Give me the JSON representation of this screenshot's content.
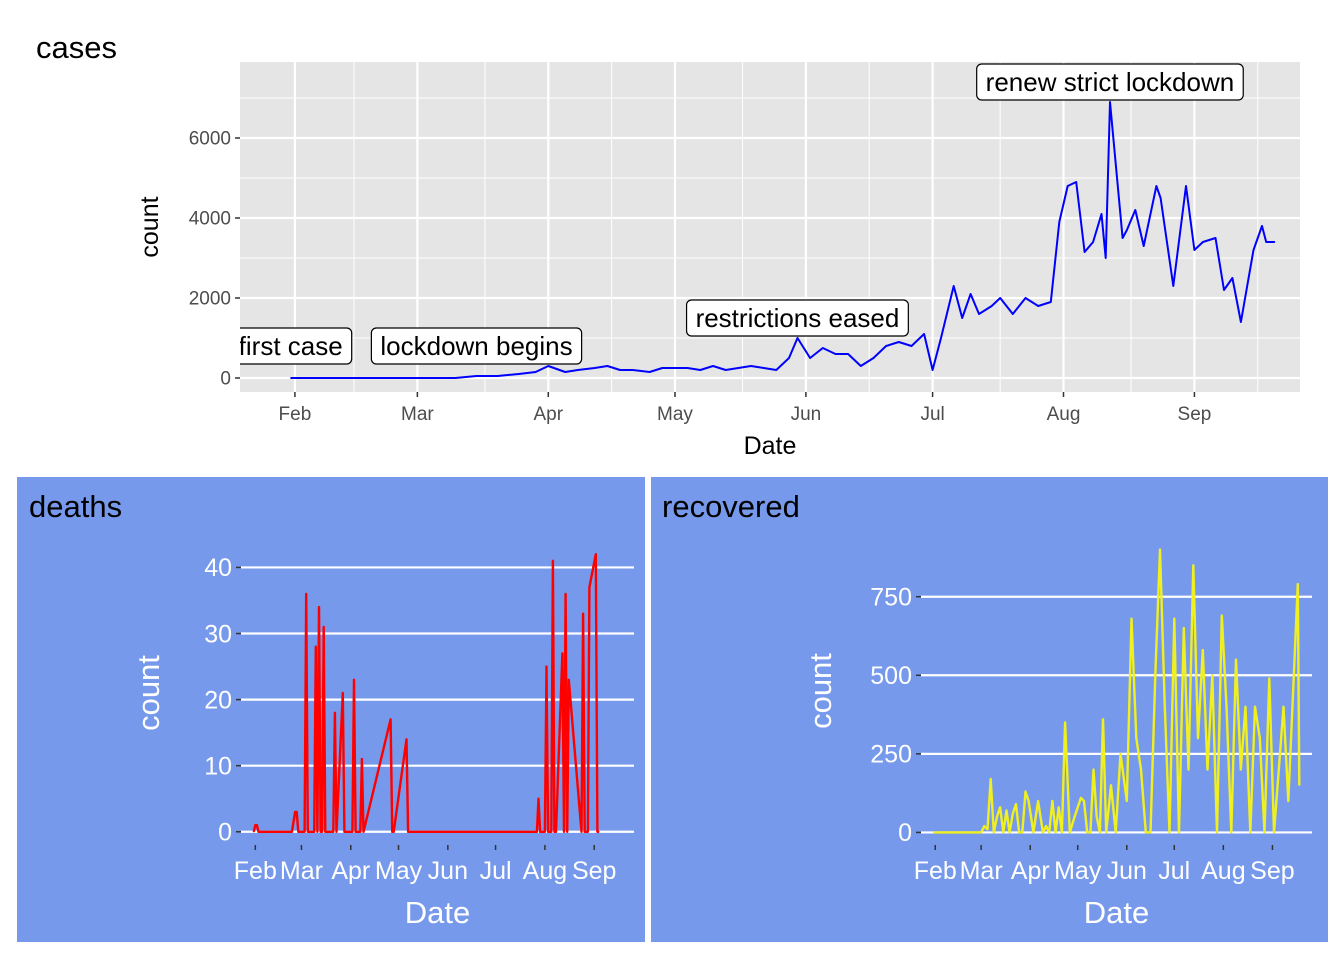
{
  "chart_data": [
    {
      "type": "line",
      "panel": "cases",
      "title": "cases",
      "xlabel": "Date",
      "ylabel": "count",
      "line_color": "#0000FF",
      "panel_bg": "#FFFFFF",
      "plot_bg": "#E5E5E5",
      "x_tick_labels": [
        "Feb",
        "Mar",
        "Apr",
        "May",
        "Jun",
        "Jul",
        "Aug",
        "Sep"
      ],
      "y_ticks": [
        0,
        2000,
        4000,
        6000
      ],
      "y_tick_labels": [
        "0",
        "2000",
        "4000",
        "6000"
      ],
      "xlim": [
        "2020-01-19",
        "2020-09-26"
      ],
      "ylim": [
        -350,
        7900
      ],
      "x": [
        "2020-01-31",
        "2020-02-15",
        "2020-03-01",
        "2020-03-10",
        "2020-03-15",
        "2020-03-20",
        "2020-03-25",
        "2020-03-29",
        "2020-04-01",
        "2020-04-05",
        "2020-04-08",
        "2020-04-12",
        "2020-04-15",
        "2020-04-18",
        "2020-04-21",
        "2020-04-25",
        "2020-04-28",
        "2020-05-01",
        "2020-05-04",
        "2020-05-07",
        "2020-05-10",
        "2020-05-13",
        "2020-05-16",
        "2020-05-19",
        "2020-05-22",
        "2020-05-25",
        "2020-05-28",
        "2020-05-30",
        "2020-06-02",
        "2020-06-05",
        "2020-06-08",
        "2020-06-11",
        "2020-06-14",
        "2020-06-17",
        "2020-06-20",
        "2020-06-23",
        "2020-06-26",
        "2020-06-29",
        "2020-07-01",
        "2020-07-03",
        "2020-07-06",
        "2020-07-08",
        "2020-07-10",
        "2020-07-12",
        "2020-07-15",
        "2020-07-17",
        "2020-07-20",
        "2020-07-23",
        "2020-07-26",
        "2020-07-29",
        "2020-07-31",
        "2020-08-02",
        "2020-08-04",
        "2020-08-06",
        "2020-08-08",
        "2020-08-10",
        "2020-08-11",
        "2020-08-12",
        "2020-08-15",
        "2020-08-16",
        "2020-08-18",
        "2020-08-20",
        "2020-08-23",
        "2020-08-24",
        "2020-08-27",
        "2020-08-30",
        "2020-09-01",
        "2020-09-03",
        "2020-09-06",
        "2020-09-08",
        "2020-09-10",
        "2020-09-12",
        "2020-09-15",
        "2020-09-17",
        "2020-09-18",
        "2020-09-20"
      ],
      "y": [
        0,
        0,
        0,
        0,
        50,
        50,
        100,
        150,
        300,
        150,
        200,
        250,
        300,
        200,
        200,
        150,
        250,
        250,
        250,
        200,
        300,
        200,
        250,
        300,
        250,
        200,
        500,
        1000,
        500,
        750,
        600,
        600,
        300,
        500,
        800,
        900,
        800,
        1100,
        200,
        1000,
        2300,
        1500,
        2100,
        1600,
        1800,
        2000,
        1600,
        2000,
        1800,
        1900,
        3900,
        4800,
        4900,
        3150,
        3400,
        4100,
        3000,
        6900,
        3500,
        3700,
        4200,
        3300,
        4800,
        4500,
        2300,
        4800,
        3200,
        3400,
        3500,
        2200,
        2500,
        1400,
        3200,
        3800,
        3400,
        3400
      ]
    },
    {
      "type": "line",
      "panel": "deaths",
      "title": "deaths",
      "xlabel": "Date",
      "ylabel": "count",
      "line_color": "#FF0000",
      "panel_bg": "#7699EB",
      "x_tick_labels": [
        "Feb",
        "Mar",
        "Apr",
        "May",
        "Jun",
        "Jul",
        "Aug",
        "Sep"
      ],
      "y_ticks": [
        0,
        10,
        20,
        30,
        40
      ],
      "y_tick_labels": [
        "0",
        "10",
        "20",
        "30",
        "40"
      ],
      "xlim": [
        "2020-01-23",
        "2020-09-26"
      ],
      "ylim": [
        -2,
        44
      ],
      "x": [
        "2020-01-31",
        "2020-02-01",
        "2020-02-02",
        "2020-02-03",
        "2020-02-24",
        "2020-02-26",
        "2020-02-27",
        "2020-02-28",
        "2020-03-03",
        "2020-03-04",
        "2020-03-05",
        "2020-03-06",
        "2020-03-07",
        "2020-03-08",
        "2020-03-09",
        "2020-03-10",
        "2020-03-11",
        "2020-03-12",
        "2020-03-13",
        "2020-03-14",
        "2020-03-15",
        "2020-03-16",
        "2020-03-21",
        "2020-03-22",
        "2020-03-23",
        "2020-03-27",
        "2020-03-28",
        "2020-03-29",
        "2020-04-02",
        "2020-04-03",
        "2020-04-04",
        "2020-04-07",
        "2020-04-08",
        "2020-04-09",
        "2020-04-26",
        "2020-04-27",
        "2020-04-28",
        "2020-05-06",
        "2020-05-07",
        "2020-05-08",
        "2020-07-27",
        "2020-07-28",
        "2020-07-29",
        "2020-08-01",
        "2020-08-02",
        "2020-08-03",
        "2020-08-04",
        "2020-08-05",
        "2020-08-06",
        "2020-08-07",
        "2020-08-08",
        "2020-08-12",
        "2020-08-13",
        "2020-08-14",
        "2020-08-15",
        "2020-08-16",
        "2020-08-24",
        "2020-08-25",
        "2020-08-26",
        "2020-08-27",
        "2020-08-28",
        "2020-08-29",
        "2020-09-02",
        "2020-09-03",
        "2020-09-04"
      ],
      "y": [
        0,
        1,
        1,
        0,
        0,
        3,
        3,
        0,
        0,
        36,
        0,
        0,
        0,
        0,
        0,
        28,
        0,
        34,
        0,
        0,
        31,
        0,
        0,
        18,
        0,
        21,
        0,
        0,
        0,
        23,
        0,
        0,
        11,
        0,
        17,
        0,
        0,
        14,
        0,
        0,
        0,
        5,
        0,
        0,
        25,
        0,
        0,
        0,
        41,
        0,
        0,
        27,
        0,
        36,
        0,
        23,
        0,
        33,
        0,
        0,
        0,
        37,
        42,
        0,
        0
      ]
    },
    {
      "type": "line",
      "panel": "recovered",
      "title": "recovered",
      "xlabel": "Date",
      "ylabel": "count",
      "line_color": "#F0F021",
      "panel_bg": "#7699EB",
      "x_tick_labels": [
        "Feb",
        "Mar",
        "Apr",
        "May",
        "Jun",
        "Jul",
        "Aug",
        "Sep"
      ],
      "y_ticks": [
        0,
        250,
        500,
        750
      ],
      "y_tick_labels": [
        "0",
        "250",
        "500",
        "750"
      ],
      "xlim": [
        "2020-01-23",
        "2020-09-26"
      ],
      "ylim": [
        -40,
        940
      ],
      "x": [
        "2020-01-31",
        "2020-03-01",
        "2020-03-03",
        "2020-03-05",
        "2020-03-07",
        "2020-03-09",
        "2020-03-11",
        "2020-03-13",
        "2020-03-15",
        "2020-03-17",
        "2020-03-19",
        "2020-03-21",
        "2020-03-23",
        "2020-03-25",
        "2020-03-27",
        "2020-03-29",
        "2020-03-31",
        "2020-04-03",
        "2020-04-06",
        "2020-04-09",
        "2020-04-11",
        "2020-04-13",
        "2020-04-15",
        "2020-04-17",
        "2020-04-19",
        "2020-04-21",
        "2020-04-23",
        "2020-04-26",
        "2020-04-29",
        "2020-05-03",
        "2020-05-05",
        "2020-05-07",
        "2020-05-09",
        "2020-05-11",
        "2020-05-13",
        "2020-05-15",
        "2020-05-17",
        "2020-05-19",
        "2020-05-22",
        "2020-05-25",
        "2020-05-28",
        "2020-06-01",
        "2020-06-04",
        "2020-06-07",
        "2020-06-10",
        "2020-06-13",
        "2020-06-16",
        "2020-06-19",
        "2020-06-22",
        "2020-06-25",
        "2020-06-28",
        "2020-07-01",
        "2020-07-04",
        "2020-07-07",
        "2020-07-10",
        "2020-07-13",
        "2020-07-16",
        "2020-07-19",
        "2020-07-22",
        "2020-07-25",
        "2020-07-28",
        "2020-07-31",
        "2020-08-03",
        "2020-08-06",
        "2020-08-09",
        "2020-08-12",
        "2020-08-15",
        "2020-08-18",
        "2020-08-21",
        "2020-08-24",
        "2020-08-27",
        "2020-08-30",
        "2020-09-02",
        "2020-09-05",
        "2020-09-08",
        "2020-09-11",
        "2020-09-14",
        "2020-09-17",
        "2020-09-18"
      ],
      "y": [
        0,
        0,
        20,
        10,
        170,
        0,
        50,
        80,
        0,
        70,
        0,
        60,
        90,
        0,
        0,
        130,
        100,
        0,
        100,
        0,
        20,
        0,
        100,
        0,
        80,
        0,
        350,
        0,
        50,
        110,
        100,
        0,
        0,
        200,
        50,
        0,
        360,
        0,
        150,
        0,
        250,
        100,
        680,
        300,
        200,
        0,
        0,
        500,
        900,
        400,
        0,
        680,
        0,
        650,
        200,
        850,
        300,
        580,
        200,
        500,
        0,
        690,
        400,
        0,
        550,
        200,
        400,
        0,
        400,
        300,
        0,
        490,
        0,
        200,
        400,
        100,
        440,
        790,
        150
      ]
    }
  ],
  "annotations": [
    {
      "label": "first case",
      "date": "2020-01-31",
      "y": 800
    },
    {
      "label": "lockdown begins",
      "date": "2020-03-15",
      "y": 800
    },
    {
      "label": "restrictions eased",
      "date": "2020-05-30",
      "y": 1500
    },
    {
      "label": "renew strict lockdown",
      "date": "2020-08-12",
      "y": 7400
    }
  ]
}
